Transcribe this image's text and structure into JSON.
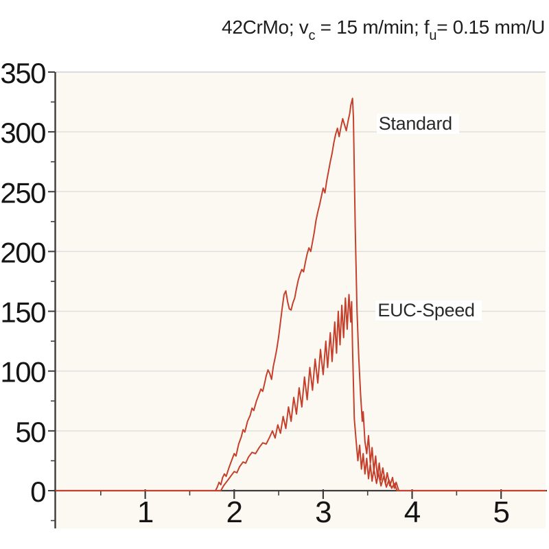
{
  "title": {
    "full": "42CrMo; vc = 15 m/min; fu = 0.15 mm/U",
    "part1": "42CrMo; v",
    "sub1": "c",
    "part2": " = 15 m/min;  f",
    "sub2": "u",
    "part3": "= 0.15 mm/U"
  },
  "colors": {
    "line": "#c5402c",
    "plot_bg": "#fbf9f1",
    "grid": "#dcdcdc",
    "axis": "#3c3c3c",
    "tick_text": "#151515"
  },
  "chart_data": {
    "type": "line",
    "title": "42CrMo; vc = 15 m/min; fu = 0.15 mm/U",
    "xlabel": "",
    "ylabel": "",
    "xlim": [
      0,
      5.5
    ],
    "ylim": [
      -31.5,
      350
    ],
    "grid": "horizontal-only",
    "grid_y_values": [
      50,
      100,
      150,
      200,
      250,
      300,
      350
    ],
    "x_ticks_major": [
      1,
      2,
      3,
      4,
      5
    ],
    "x_ticks_minor": [
      0.5,
      1.5,
      2.5,
      3.5,
      4.5
    ],
    "y_ticks_major": [
      0,
      50,
      100,
      150,
      200,
      250,
      300,
      350
    ],
    "y_ticks_minor": [
      -25,
      25,
      75,
      125,
      175,
      225,
      275,
      325
    ],
    "legend_position": "inline-annotations",
    "series": [
      {
        "name": "Standard",
        "color": "#c5402c",
        "peak": 328,
        "label_pos": [
          3.6,
          306
        ],
        "points": [
          [
            0,
            0
          ],
          [
            1.79,
            0
          ],
          [
            1.81,
            3
          ],
          [
            1.83,
            7
          ],
          [
            1.85,
            5
          ],
          [
            1.87,
            11
          ],
          [
            1.89,
            14
          ],
          [
            1.91,
            12
          ],
          [
            1.94,
            19
          ],
          [
            1.97,
            25
          ],
          [
            2.0,
            31
          ],
          [
            2.02,
            29
          ],
          [
            2.05,
            39
          ],
          [
            2.08,
            45
          ],
          [
            2.1,
            51
          ],
          [
            2.12,
            49
          ],
          [
            2.15,
            58
          ],
          [
            2.18,
            63
          ],
          [
            2.2,
            69
          ],
          [
            2.22,
            67
          ],
          [
            2.25,
            75
          ],
          [
            2.28,
            81
          ],
          [
            2.3,
            85
          ],
          [
            2.32,
            83
          ],
          [
            2.34,
            89
          ],
          [
            2.36,
            96
          ],
          [
            2.38,
            101
          ],
          [
            2.4,
            98
          ],
          [
            2.42,
            93
          ],
          [
            2.44,
            104
          ],
          [
            2.46,
            111
          ],
          [
            2.48,
            119
          ],
          [
            2.5,
            129
          ],
          [
            2.52,
            141
          ],
          [
            2.54,
            153
          ],
          [
            2.56,
            164
          ],
          [
            2.58,
            167
          ],
          [
            2.6,
            158
          ],
          [
            2.62,
            152
          ],
          [
            2.64,
            151
          ],
          [
            2.66,
            157
          ],
          [
            2.68,
            161
          ],
          [
            2.7,
            169
          ],
          [
            2.72,
            176
          ],
          [
            2.74,
            181
          ],
          [
            2.76,
            185
          ],
          [
            2.78,
            183
          ],
          [
            2.8,
            191
          ],
          [
            2.82,
            198
          ],
          [
            2.84,
            203
          ],
          [
            2.86,
            200
          ],
          [
            2.88,
            208
          ],
          [
            2.9,
            216
          ],
          [
            2.92,
            226
          ],
          [
            2.94,
            233
          ],
          [
            2.96,
            239
          ],
          [
            2.98,
            246
          ],
          [
            3.0,
            253
          ],
          [
            3.02,
            249
          ],
          [
            3.04,
            259
          ],
          [
            3.06,
            267
          ],
          [
            3.08,
            275
          ],
          [
            3.1,
            282
          ],
          [
            3.12,
            291
          ],
          [
            3.14,
            298
          ],
          [
            3.16,
            303
          ],
          [
            3.18,
            296
          ],
          [
            3.2,
            304
          ],
          [
            3.22,
            311
          ],
          [
            3.24,
            306
          ],
          [
            3.26,
            301
          ],
          [
            3.28,
            309
          ],
          [
            3.3,
            316
          ],
          [
            3.31,
            322
          ],
          [
            3.33,
            328
          ],
          [
            3.34,
            312
          ],
          [
            3.35,
            266
          ],
          [
            3.36,
            221
          ],
          [
            3.37,
            186
          ],
          [
            3.38,
            151
          ],
          [
            3.4,
            111
          ],
          [
            3.42,
            81
          ],
          [
            3.44,
            58
          ],
          [
            3.45,
            66
          ],
          [
            3.47,
            41
          ],
          [
            3.49,
            31
          ],
          [
            3.51,
            46
          ],
          [
            3.53,
            23
          ],
          [
            3.55,
            36
          ],
          [
            3.57,
            16
          ],
          [
            3.59,
            29
          ],
          [
            3.61,
            11
          ],
          [
            3.63,
            23
          ],
          [
            3.65,
            9
          ],
          [
            3.67,
            19
          ],
          [
            3.7,
            6
          ],
          [
            3.72,
            15
          ],
          [
            3.75,
            4
          ],
          [
            3.78,
            11
          ],
          [
            3.8,
            2
          ],
          [
            3.82,
            7
          ],
          [
            3.85,
            0
          ],
          [
            5.5,
            0
          ]
        ]
      },
      {
        "name": "EUC-Speed",
        "color": "#c5402c",
        "peak": 164,
        "label_pos": [
          3.59,
          150
        ],
        "points": [
          [
            0,
            0
          ],
          [
            1.85,
            0
          ],
          [
            1.88,
            4
          ],
          [
            1.91,
            7
          ],
          [
            1.94,
            10
          ],
          [
            1.97,
            13
          ],
          [
            2.0,
            16
          ],
          [
            2.03,
            15
          ],
          [
            2.06,
            20
          ],
          [
            2.1,
            24
          ],
          [
            2.13,
            23
          ],
          [
            2.16,
            28
          ],
          [
            2.2,
            32
          ],
          [
            2.24,
            31
          ],
          [
            2.28,
            36
          ],
          [
            2.32,
            40
          ],
          [
            2.36,
            39
          ],
          [
            2.4,
            45
          ],
          [
            2.43,
            50
          ],
          [
            2.46,
            44
          ],
          [
            2.49,
            55
          ],
          [
            2.52,
            48
          ],
          [
            2.55,
            62
          ],
          [
            2.58,
            52
          ],
          [
            2.61,
            70
          ],
          [
            2.64,
            58
          ],
          [
            2.67,
            78
          ],
          [
            2.7,
            64
          ],
          [
            2.73,
            86
          ],
          [
            2.76,
            70
          ],
          [
            2.79,
            95
          ],
          [
            2.82,
            76
          ],
          [
            2.85,
            103
          ],
          [
            2.88,
            84
          ],
          [
            2.91,
            110
          ],
          [
            2.94,
            90
          ],
          [
            2.97,
            118
          ],
          [
            3.0,
            97
          ],
          [
            3.03,
            125
          ],
          [
            3.05,
            103
          ],
          [
            3.08,
            132
          ],
          [
            3.1,
            108
          ],
          [
            3.13,
            141
          ],
          [
            3.15,
            115
          ],
          [
            3.17,
            150
          ],
          [
            3.19,
            122
          ],
          [
            3.21,
            155
          ],
          [
            3.23,
            128
          ],
          [
            3.25,
            161
          ],
          [
            3.27,
            135
          ],
          [
            3.29,
            164
          ],
          [
            3.31,
            141
          ],
          [
            3.32,
            158
          ],
          [
            3.33,
            120
          ],
          [
            3.34,
            90
          ],
          [
            3.35,
            60
          ],
          [
            3.37,
            42
          ],
          [
            3.39,
            25
          ],
          [
            3.41,
            38
          ],
          [
            3.43,
            18
          ],
          [
            3.45,
            31
          ],
          [
            3.47,
            14
          ],
          [
            3.49,
            27
          ],
          [
            3.51,
            10
          ],
          [
            3.53,
            22
          ],
          [
            3.55,
            8
          ],
          [
            3.57,
            18
          ],
          [
            3.6,
            6
          ],
          [
            3.62,
            15
          ],
          [
            3.65,
            4
          ],
          [
            3.68,
            12
          ],
          [
            3.71,
            3
          ],
          [
            3.74,
            9
          ],
          [
            3.77,
            2
          ],
          [
            3.8,
            6
          ],
          [
            3.83,
            0
          ],
          [
            5.5,
            0
          ]
        ]
      }
    ]
  }
}
